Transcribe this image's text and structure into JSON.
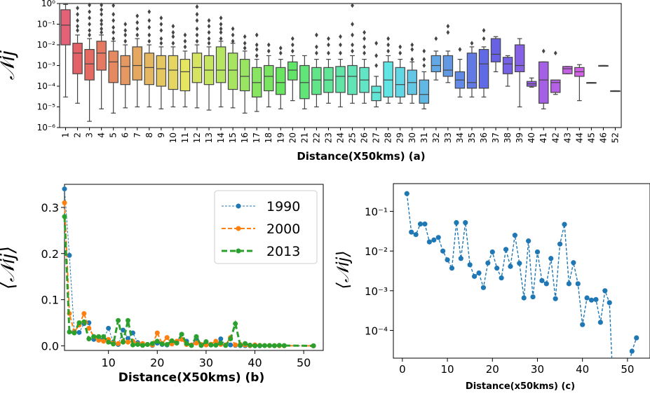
{
  "chart_data": [
    {
      "type": "box",
      "xlabel": "Distance(X50kms) (a)",
      "ylabel": "𝒩ij",
      "yscale": "log",
      "ylim": [
        1e-06,
        1
      ],
      "yticks": [
        "10⁻⁶",
        "10⁻⁵",
        "10⁻⁴",
        "10⁻³",
        "10⁻²",
        "10⁻¹",
        "10⁰"
      ],
      "categories": [
        "1",
        "2",
        "3",
        "4",
        "5",
        "6",
        "7",
        "8",
        "9",
        "10",
        "11",
        "12",
        "13",
        "14",
        "15",
        "16",
        "17",
        "18",
        "19",
        "20",
        "21",
        "22",
        "23",
        "24",
        "25",
        "26",
        "27",
        "28",
        "29",
        "30",
        "31",
        "32",
        "33",
        "34",
        "35",
        "36",
        "37",
        "38",
        "39",
        "40",
        "41",
        "42",
        "43",
        "44",
        "45",
        "46",
        "52"
      ],
      "boxes": [
        {
          "q1": 0.01,
          "median": 0.09,
          "q3": 0.5,
          "whislo": 3e-05,
          "whishi": 0.9,
          "fliers": []
        },
        {
          "q1": 0.0004,
          "median": 0.004,
          "q3": 0.012,
          "whislo": 1.5e-05,
          "whishi": 0.03,
          "fliers": [
            0.05,
            0.08,
            0.15,
            0.3,
            0.6
          ]
        },
        {
          "q1": 0.0002,
          "median": 0.0012,
          "q3": 0.006,
          "whislo": 2e-06,
          "whishi": 0.02,
          "fliers": [
            0.03,
            0.05,
            0.1,
            0.2,
            0.4,
            0.85
          ]
        },
        {
          "q1": 0.0006,
          "median": 0.004,
          "q3": 0.015,
          "whislo": 8e-06,
          "whishi": 0.03,
          "fliers": [
            0.04,
            0.06,
            0.1,
            0.15,
            0.3,
            0.5,
            0.85
          ]
        },
        {
          "q1": 0.00015,
          "median": 0.0015,
          "q3": 0.005,
          "whislo": 5e-06,
          "whishi": 0.015,
          "fliers": [
            0.02,
            0.04,
            0.07,
            0.15,
            0.3,
            0.8
          ]
        },
        {
          "q1": 0.00012,
          "median": 0.0009,
          "q3": 0.003,
          "whislo": 9e-06,
          "whishi": 0.01,
          "fliers": [
            0.015,
            0.03,
            0.05,
            0.1
          ]
        },
        {
          "q1": 0.0002,
          "median": 0.001,
          "q3": 0.008,
          "whislo": 1e-05,
          "whishi": 0.02,
          "fliers": [
            0.03,
            0.06,
            0.12,
            0.25
          ]
        },
        {
          "q1": 0.00012,
          "median": 0.0008,
          "q3": 0.004,
          "whislo": 1e-05,
          "whishi": 0.01,
          "fliers": [
            0.015,
            0.03,
            0.07,
            0.15,
            0.4
          ]
        },
        {
          "q1": 0.0001,
          "median": 0.0007,
          "q3": 0.003,
          "whislo": 8e-06,
          "whishi": 0.008,
          "fliers": [
            0.012,
            0.02,
            0.05,
            0.1,
            0.2
          ]
        },
        {
          "q1": 7e-05,
          "median": 0.0006,
          "q3": 0.003,
          "whislo": 1e-05,
          "whishi": 0.008,
          "fliers": [
            0.012,
            0.025,
            0.04,
            0.08
          ]
        },
        {
          "q1": 6e-05,
          "median": 0.0005,
          "q3": 0.002,
          "whislo": 1e-05,
          "whishi": 0.005,
          "fliers": [
            0.008,
            0.015,
            0.03
          ]
        },
        {
          "q1": 0.00015,
          "median": 0.0008,
          "q3": 0.004,
          "whislo": 9e-06,
          "whishi": 0.01,
          "fliers": [
            0.015,
            0.03,
            0.06,
            0.15,
            0.3,
            0.7
          ]
        },
        {
          "q1": 0.00012,
          "median": 0.0006,
          "q3": 0.003,
          "whislo": 7e-06,
          "whishi": 0.008,
          "fliers": [
            0.012,
            0.02,
            0.04,
            0.08,
            0.15
          ]
        },
        {
          "q1": 0.00015,
          "median": 0.0006,
          "q3": 0.008,
          "whislo": 1e-05,
          "whishi": 0.015,
          "fliers": [
            0.02,
            0.04,
            0.06,
            0.1,
            0.2
          ]
        },
        {
          "q1": 7e-05,
          "median": 0.0006,
          "q3": 0.004,
          "whislo": 9e-06,
          "whishi": 0.012,
          "fliers": [
            0.015,
            0.03,
            0.06
          ]
        },
        {
          "q1": 6e-05,
          "median": 0.0003,
          "q3": 0.002,
          "whislo": 5e-06,
          "whishi": 0.005,
          "fliers": [
            0.007,
            0.012,
            0.025
          ]
        },
        {
          "q1": 3e-05,
          "median": 0.00015,
          "q3": 0.0008,
          "whislo": 6e-06,
          "whishi": 0.002,
          "fliers": [
            0.003,
            0.006,
            0.01,
            0.03
          ]
        },
        {
          "q1": 6e-05,
          "median": 0.0003,
          "q3": 0.001,
          "whislo": 1e-05,
          "whishi": 0.003,
          "fliers": [
            0.005,
            0.01
          ]
        },
        {
          "q1": 4e-05,
          "median": 0.00015,
          "q3": 0.0008,
          "whislo": 8e-06,
          "whishi": 0.002,
          "fliers": [
            0.004,
            0.007
          ]
        },
        {
          "q1": 0.0002,
          "median": 0.0006,
          "q3": 0.0015,
          "whislo": 2e-05,
          "whishi": 0.003,
          "fliers": [
            0.005,
            0.01,
            0.02
          ]
        },
        {
          "q1": 2.5e-05,
          "median": 0.00015,
          "q3": 0.001,
          "whislo": 8e-06,
          "whishi": 0.003,
          "fliers": []
        },
        {
          "q1": 4e-05,
          "median": 0.0002,
          "q3": 0.0008,
          "whislo": 1e-05,
          "whishi": 0.002,
          "fliers": [
            0.004,
            0.008,
            0.03
          ]
        },
        {
          "q1": 5e-05,
          "median": 0.0002,
          "q3": 0.0008,
          "whislo": 1.5e-05,
          "whishi": 0.002,
          "fliers": [
            0.004,
            0.01,
            0.02
          ]
        },
        {
          "q1": 5e-05,
          "median": 0.0003,
          "q3": 0.0009,
          "whislo": 1e-05,
          "whishi": 0.002,
          "fliers": [
            0.004,
            0.01,
            0.025
          ]
        },
        {
          "q1": 4e-05,
          "median": 0.0003,
          "q3": 0.001,
          "whislo": 1.5e-05,
          "whishi": 0.003,
          "fliers": [
            0.005,
            0.01,
            0.03,
            0.1,
            0.8
          ]
        },
        {
          "q1": 5e-05,
          "median": 0.0002,
          "q3": 0.0008,
          "whislo": 1.5e-05,
          "whishi": 0.002,
          "fliers": [
            0.004,
            0.008,
            0.02,
            0.04
          ]
        },
        {
          "q1": 2e-05,
          "median": 5e-05,
          "q3": 0.0001,
          "whislo": 1e-05,
          "whishi": 0.0003,
          "fliers": [
            0.001,
            0.003,
            0.012
          ]
        },
        {
          "q1": 3e-05,
          "median": 0.0002,
          "q3": 0.0015,
          "whislo": 1.5e-05,
          "whishi": 0.003,
          "fliers": [
            0.005,
            0.01,
            0.02
          ]
        },
        {
          "q1": 3e-05,
          "median": 0.00012,
          "q3": 0.0008,
          "whislo": 1.5e-05,
          "whishi": 0.002,
          "fliers": [
            0.004,
            0.008
          ]
        },
        {
          "q1": 4e-05,
          "median": 0.00015,
          "q3": 0.0006,
          "whislo": 1.5e-05,
          "whishi": 0.0015,
          "fliers": [
            0.002,
            0.006,
            0.01
          ]
        },
        {
          "q1": 1.5e-05,
          "median": 4e-05,
          "q3": 0.0002,
          "whislo": 8e-06,
          "whishi": 0.0005,
          "fliers": [
            0.001,
            0.002,
            0.005
          ]
        },
        {
          "q1": 0.0005,
          "median": 0.001,
          "q3": 0.003,
          "whislo": 0.0002,
          "whishi": 0.005,
          "fliers": [
            0.02
          ]
        },
        {
          "q1": 0.0003,
          "median": 0.0006,
          "q3": 0.003,
          "whislo": 0.00015,
          "whishi": 0.005,
          "fliers": [
            0.04,
            0.08
          ]
        },
        {
          "q1": 8e-05,
          "median": 0.0002,
          "q3": 0.0005,
          "whislo": 3e-05,
          "whishi": 0.002,
          "fliers": [
            0.006
          ]
        },
        {
          "q1": 8e-05,
          "median": 0.00015,
          "q3": 0.004,
          "whislo": 3e-05,
          "whishi": 0.008,
          "fliers": [
            0.012
          ]
        },
        {
          "q1": 8e-05,
          "median": 0.0012,
          "q3": 0.006,
          "whislo": 3e-05,
          "whishi": 0.008,
          "fliers": [
            0.02,
            0.05
          ]
        },
        {
          "q1": 0.0015,
          "median": 0.0035,
          "q3": 0.02,
          "whislo": 0.0005,
          "whishi": 0.025,
          "fliers": []
        },
        {
          "q1": 0.0004,
          "median": 0.0012,
          "q3": 0.0025,
          "whislo": 0.0001,
          "whishi": 0.003,
          "fliers": []
        },
        {
          "q1": 0.0005,
          "median": 0.001,
          "q3": 0.01,
          "whislo": 1e-05,
          "whishi": 0.02,
          "fliers": []
        },
        {
          "q1": 0.0001,
          "median": 0.00013,
          "q3": 0.00017,
          "whislo": 9e-05,
          "whishi": 0.00025,
          "fliers": []
        },
        {
          "q1": 1.5e-05,
          "median": 0.0002,
          "q3": 0.0015,
          "whislo": 8e-06,
          "whishi": 0.0015,
          "fliers": [
            0.005
          ]
        },
        {
          "q1": 5e-05,
          "median": 0.00015,
          "q3": 0.0002,
          "whislo": 4e-05,
          "whishi": 0.0002,
          "fliers": [
            0.004
          ]
        },
        {
          "q1": 0.0004,
          "median": 0.0007,
          "q3": 0.0009,
          "whislo": 0.0004,
          "whishi": 0.0009,
          "fliers": []
        },
        {
          "q1": 0.0003,
          "median": 0.0005,
          "q3": 0.0008,
          "whislo": 2e-05,
          "whishi": 0.0011,
          "fliers": []
        },
        {
          "q1": 0.00015,
          "median": 0.00015,
          "q3": 0.00015,
          "whislo": 0.00015,
          "whishi": 0.00015,
          "fliers": []
        },
        {
          "q1": 0.001,
          "median": 0.001,
          "q3": 0.001,
          "whislo": 0.001,
          "whishi": 0.001,
          "fliers": []
        },
        {
          "q1": 6e-05,
          "median": 6e-05,
          "q3": 6e-05,
          "whislo": 6e-05,
          "whishi": 6e-05,
          "fliers": []
        }
      ]
    },
    {
      "type": "line",
      "xlabel": "Distance(X50kms) (b)",
      "ylabel": "⟨𝒩ij⟩",
      "xlim": [
        1,
        54
      ],
      "ylim": [
        -0.01,
        0.35
      ],
      "xticks": [
        "10",
        "20",
        "30",
        "40",
        "50"
      ],
      "yticks": [
        "0.0",
        "0.1",
        "0.2",
        "0.3"
      ],
      "legend_position": "top-right",
      "series": [
        {
          "name": "1990",
          "color": "#1f77b4",
          "style": "dotted",
          "x": [
            1,
            2,
            3,
            4,
            5,
            6,
            7,
            8,
            9,
            10,
            11,
            12,
            13,
            14,
            15,
            16,
            17,
            18,
            19,
            20,
            21,
            22,
            23,
            24,
            25,
            26,
            27,
            28,
            29,
            30,
            31,
            32,
            33,
            34,
            35,
            36,
            37,
            38,
            39,
            40,
            41,
            42,
            43,
            44,
            45,
            46,
            52
          ],
          "y": [
            0.34,
            0.196,
            0.031,
            0.029,
            0.048,
            0.05,
            0.014,
            0.016,
            0.015,
            0.038,
            0.008,
            0.003,
            0.034,
            0.016,
            0.028,
            0.007,
            0.002,
            0.003,
            0.001,
            0.006,
            0.003,
            0.002,
            0.01,
            0.009,
            0.025,
            0.01,
            0.001,
            0.016,
            0.001,
            0.008,
            0.0017,
            0.0015,
            0.015,
            0.001,
            0.002,
            0.001,
            0.0005,
            0.0004,
            0.0003,
            0.0003,
            0.0001,
            0.0005,
            0.0005,
            0.0002,
            0.0005,
            0.0002,
            0.0001
          ]
        },
        {
          "name": "2000",
          "color": "#ff7f0e",
          "style": "dashed",
          "x": [
            1,
            2,
            3,
            4,
            5,
            6,
            7,
            8,
            9,
            10,
            11,
            12,
            13,
            14,
            15,
            16,
            17,
            18,
            19,
            20,
            21,
            22,
            23,
            24,
            25,
            26,
            27,
            28,
            29,
            30,
            31,
            32,
            33,
            34,
            35,
            36,
            37,
            38,
            39,
            40,
            41,
            42,
            43,
            44,
            45,
            46,
            52
          ],
          "y": [
            0.31,
            0.07,
            0.03,
            0.045,
            0.07,
            0.038,
            0.02,
            0.012,
            0.01,
            0.014,
            0.006,
            0.005,
            0.01,
            0.008,
            0.01,
            0.004,
            0.005,
            0.003,
            0.002,
            0.028,
            0.005,
            0.018,
            0.004,
            0.01,
            0.014,
            0.003,
            0.002,
            0.006,
            0.003,
            0.002,
            0.0035,
            0.01,
            0.003,
            0.002,
            0.018,
            0.002,
            0.003,
            0.002,
            0.0006,
            0.002,
            0.001,
            0.0005,
            0.0005,
            0.0004,
            0.0003,
            0.0002,
            0.0001
          ]
        },
        {
          "name": "2013",
          "color": "#2ca02c",
          "style": "dashed",
          "x": [
            1,
            2,
            3,
            4,
            5,
            6,
            7,
            8,
            9,
            10,
            11,
            12,
            13,
            14,
            15,
            16,
            17,
            18,
            19,
            20,
            21,
            22,
            23,
            24,
            25,
            26,
            27,
            28,
            29,
            30,
            31,
            32,
            33,
            34,
            35,
            36,
            37,
            38,
            39,
            40,
            41,
            42,
            43,
            44,
            45,
            46,
            52
          ],
          "y": [
            0.28,
            0.03,
            0.028,
            0.05,
            0.052,
            0.015,
            0.02,
            0.02,
            0.02,
            0.008,
            0.004,
            0.055,
            0.008,
            0.055,
            0.002,
            0.003,
            0.001,
            0.003,
            0.005,
            0.01,
            0.004,
            0.003,
            0.011,
            0.006,
            0.025,
            0.005,
            0.0007,
            0.02,
            0.0007,
            0.009,
            0.002,
            0.0015,
            0.006,
            0.0008,
            0.015,
            0.048,
            0.0015,
            0.005,
            0.0015,
            0.0001,
            0.0006,
            0.0005,
            0.0006,
            0.0002,
            0.001,
            0.0005,
            5e-05
          ]
        }
      ]
    },
    {
      "type": "line",
      "xlabel": "Distance(x50kms) (c)",
      "ylabel": "⟨𝒩ij⟩",
      "yscale": "log",
      "xlim": [
        -2,
        55
      ],
      "ylim": [
        2e-05,
        0.5
      ],
      "xticks": [
        "0",
        "10",
        "20",
        "30",
        "40",
        "50"
      ],
      "yticks": [
        "10⁻⁴",
        "10⁻³",
        "10⁻²",
        "10⁻¹"
      ],
      "series": [
        {
          "color": "#1f77b4",
          "style": "dashed",
          "x": [
            1,
            2,
            3,
            4,
            5,
            6,
            7,
            8,
            9,
            10,
            11,
            12,
            13,
            14,
            15,
            16,
            17,
            18,
            19,
            20,
            21,
            22,
            23,
            24,
            25,
            26,
            27,
            28,
            29,
            30,
            31,
            32,
            33,
            34,
            35,
            36,
            37,
            38,
            39,
            40,
            41,
            42,
            43,
            44,
            45,
            46,
            47,
            48,
            51,
            52
          ],
          "y": [
            0.28,
            0.03,
            0.026,
            0.048,
            0.048,
            0.017,
            0.019,
            0.022,
            0.01,
            0.006,
            0.0037,
            0.052,
            0.0065,
            0.052,
            0.0045,
            0.0023,
            0.0028,
            0.0012,
            0.005,
            0.0095,
            0.0037,
            0.0021,
            0.011,
            0.0041,
            0.025,
            0.0049,
            0.00066,
            0.018,
            0.0007,
            0.0095,
            0.0018,
            0.0015,
            0.0065,
            0.00063,
            0.015,
            0.047,
            0.0015,
            0.0051,
            0.0015,
            0.00014,
            0.00066,
            0.00058,
            0.0006,
            0.00016,
            0.001,
            0.0005,
            1e-06,
            1e-06,
            3e-05,
            6.5e-05
          ]
        }
      ]
    }
  ]
}
